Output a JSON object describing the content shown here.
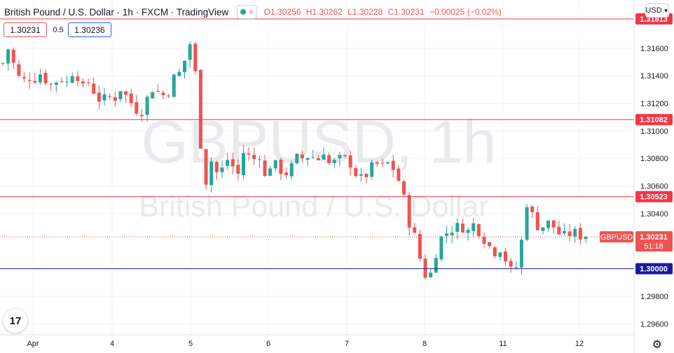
{
  "header": {
    "title": "British Pound / U.S. Dollar · 1h · FXCM · TradingView",
    "open": "O1.30256",
    "high": "H1.30262",
    "low": "L1.30228",
    "close": "C1.30231",
    "change": "−0.00025 (−0.02%)"
  },
  "quote": {
    "sell": "1.30231",
    "spread": "0.5",
    "buy": "1.30236"
  },
  "currency_button": "USD",
  "logo_text": "17",
  "colors": {
    "up": "#26a69a",
    "down": "#ef5350",
    "resistance": "#f23645",
    "support": "#1a1aa6",
    "grid": "#f0f3fa",
    "axis_text": "#131722",
    "watermark": "#e8eaed"
  },
  "chart_data": {
    "type": "candlestick",
    "symbol": "GBPUSD",
    "watermark_symbol": "GBPUSD, 1h",
    "watermark_name": "British Pound / U.S. Dollar",
    "ylim": [
      1.2952,
      1.3195
    ],
    "y_ticks": [
      "1.31600",
      "1.31400",
      "1.31200",
      "1.31000",
      "1.30800",
      "1.30600",
      "1.30400",
      "1.29800",
      "1.29600"
    ],
    "x_ticks": [
      "Apr",
      "4",
      "5",
      "6",
      "7",
      "8",
      "11",
      "12"
    ],
    "last_price": "1.30231",
    "last_price_value": 1.30231,
    "countdown": "51:18",
    "levels": [
      {
        "value": 1.31813,
        "label": "1.31813",
        "kind": "resistance"
      },
      {
        "value": 1.31082,
        "label": "1.31082",
        "kind": "resistance"
      },
      {
        "value": 1.30523,
        "label": "1.30523",
        "kind": "resistance"
      },
      {
        "value": 1.3,
        "label": "1.30000",
        "kind": "support"
      }
    ],
    "close_path": [
      1.3149,
      1.3162,
      1.3141,
      1.3136,
      1.3139,
      1.3138,
      1.3143,
      1.3132,
      1.3136,
      1.3138,
      1.3134,
      1.3148,
      1.3129,
      1.3136,
      1.3128,
      1.3121,
      1.3125,
      1.3123,
      1.3131,
      1.3124,
      1.3118,
      1.3112,
      1.3123,
      1.3132,
      1.3127,
      1.3125,
      1.3138,
      1.3142,
      1.3154,
      1.317,
      1.3098,
      1.3063,
      1.3081,
      1.3064,
      1.3081,
      1.3075,
      1.3068,
      1.309,
      1.3075,
      1.3087,
      1.3066,
      1.3077,
      1.3074,
      1.3068,
      1.3073,
      1.3081,
      1.308,
      1.3083,
      1.3078,
      1.3086,
      1.3074,
      1.3079,
      1.308,
      1.3077,
      1.3068,
      1.3064,
      1.3072,
      1.3076,
      1.3074,
      1.3077,
      1.307,
      1.3056,
      1.3034,
      1.3022,
      1.3001,
      1.299,
      1.301,
      1.3023,
      1.3027,
      1.303,
      1.3031,
      1.3027,
      1.3033,
      1.3025,
      1.3018,
      1.3012,
      1.3015,
      1.3004,
      1.2994,
      1.3013,
      1.3048,
      1.3037,
      1.3028,
      1.3034,
      1.3031,
      1.3025,
      1.3023,
      1.3027,
      1.3024,
      1.3023
    ]
  }
}
